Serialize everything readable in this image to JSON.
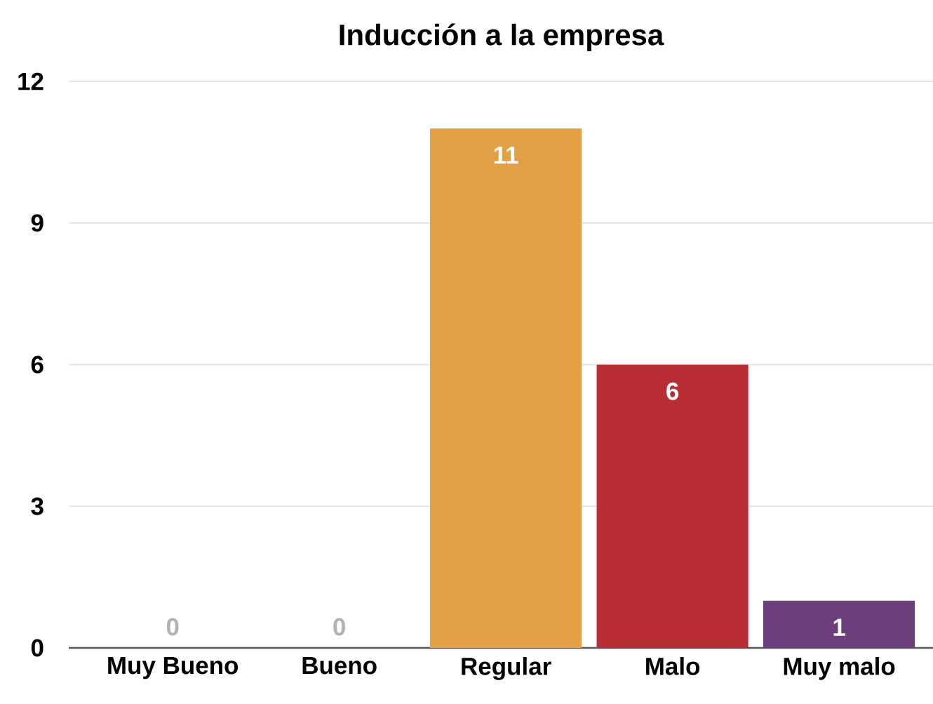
{
  "chart_data": {
    "type": "bar",
    "title": "Inducción a la empresa",
    "categories": [
      "Muy Bueno",
      "Bueno",
      "Regular",
      "Malo",
      "Muy malo"
    ],
    "values": [
      0,
      0,
      11,
      6,
      1
    ],
    "colors": [
      "#4a7fc1",
      "#78a83c",
      "#e4a045",
      "#b92e34",
      "#6c3e7b"
    ],
    "ylim": [
      0,
      12
    ],
    "yticks": [
      0,
      3,
      6,
      9,
      12
    ],
    "grid": "y",
    "data_labels": true
  }
}
